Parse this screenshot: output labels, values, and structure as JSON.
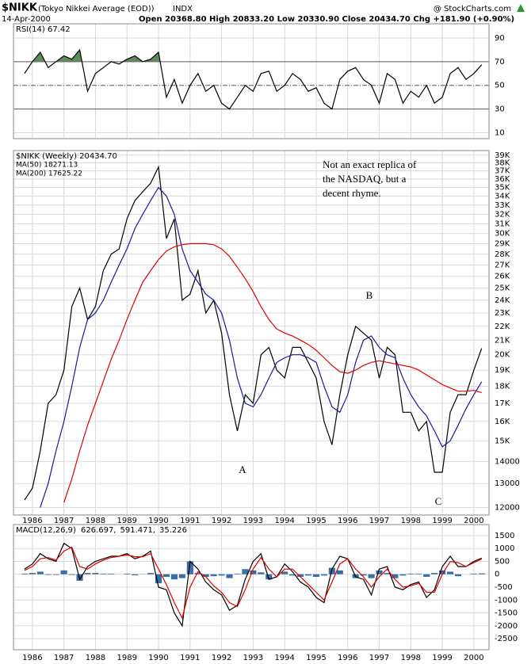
{
  "header": {
    "symbol": "$NIKK",
    "name": "(Tokyo Nikkei Average (EOD))",
    "exchange": "INDX",
    "source": "@ StockCharts.com",
    "date": "14-Apr-2000",
    "quote": "Open 20368.80  High 20833.20  Low 20330.90  Close 20434.70  Chg +181.90 (+0.90%)"
  },
  "chart_data": [
    {
      "type": "line",
      "title": "RSI(14) 67.42",
      "x": [
        1985.75,
        1986,
        1986.25,
        1986.5,
        1986.75,
        1987,
        1987.25,
        1987.5,
        1987.75,
        1988,
        1988.25,
        1988.5,
        1988.75,
        1989,
        1989.25,
        1989.5,
        1989.75,
        1990,
        1990.25,
        1990.5,
        1990.75,
        1991,
        1991.25,
        1991.5,
        1991.75,
        1992,
        1992.25,
        1992.5,
        1992.75,
        1993,
        1993.25,
        1993.5,
        1993.75,
        1994,
        1994.25,
        1994.5,
        1994.75,
        1995,
        1995.25,
        1995.5,
        1995.75,
        1996,
        1996.25,
        1996.5,
        1996.75,
        1997,
        1997.25,
        1997.5,
        1997.75,
        1998,
        1998.25,
        1998.5,
        1998.75,
        1999,
        1999.25,
        1999.5,
        1999.75,
        2000,
        2000.25
      ],
      "series": [
        {
          "name": "RSI(14)",
          "color": "#000000",
          "values": [
            60,
            70,
            78,
            65,
            70,
            75,
            72,
            80,
            45,
            60,
            65,
            70,
            68,
            72,
            75,
            70,
            72,
            78,
            40,
            55,
            35,
            50,
            60,
            45,
            50,
            35,
            30,
            40,
            50,
            45,
            60,
            62,
            45,
            50,
            60,
            55,
            45,
            48,
            35,
            30,
            55,
            62,
            65,
            55,
            50,
            35,
            60,
            55,
            35,
            45,
            40,
            50,
            35,
            40,
            60,
            65,
            55,
            60,
            67.42
          ]
        }
      ],
      "xlim": [
        1985.4,
        2000.48
      ],
      "ylim": [
        5,
        102
      ],
      "yticks": [
        10,
        30,
        50,
        70,
        90
      ],
      "overbought": 70,
      "overbought_color": "#5f8a5f",
      "grid": true
    },
    {
      "type": "line",
      "title": "$NIKK (Weekly) 20434.70",
      "log_scale": true,
      "x": [
        1985.75,
        1986,
        1986.25,
        1986.5,
        1986.75,
        1987,
        1987.25,
        1987.5,
        1987.75,
        1988,
        1988.25,
        1988.5,
        1988.75,
        1989,
        1989.25,
        1989.5,
        1989.75,
        1990,
        1990.25,
        1990.5,
        1990.75,
        1991,
        1991.25,
        1991.5,
        1991.75,
        1992,
        1992.25,
        1992.5,
        1992.75,
        1993,
        1993.25,
        1993.5,
        1993.75,
        1994,
        1994.25,
        1994.5,
        1994.75,
        1995,
        1995.25,
        1995.5,
        1995.75,
        1996,
        1996.25,
        1996.5,
        1996.75,
        1997,
        1997.25,
        1997.5,
        1997.75,
        1998,
        1998.25,
        1998.5,
        1998.75,
        1999,
        1999.25,
        1999.5,
        1999.75,
        2000,
        2000.25
      ],
      "series": [
        {
          "name": "$NIKK (Weekly) 20434.70",
          "color": "#000000",
          "values": [
            12300,
            12800,
            14500,
            17000,
            17500,
            19000,
            23500,
            25000,
            22500,
            23500,
            26500,
            28000,
            28500,
            31500,
            33500,
            34500,
            35500,
            37500,
            29500,
            31500,
            24000,
            24500,
            26500,
            23000,
            24000,
            21500,
            17500,
            15500,
            17500,
            17000,
            20000,
            20500,
            19000,
            18500,
            20500,
            20500,
            19500,
            18500,
            16000,
            14800,
            17500,
            20000,
            22000,
            21500,
            21000,
            18500,
            20500,
            20000,
            16500,
            16500,
            15500,
            16000,
            13500,
            13500,
            16500,
            17500,
            17500,
            19000,
            20434.7
          ]
        },
        {
          "name": "MA(50) 18271.13",
          "color": "#1a1a9c",
          "values": [
            null,
            null,
            12000,
            13000,
            14500,
            16000,
            18000,
            20500,
            22500,
            23000,
            24000,
            25500,
            27000,
            28500,
            30500,
            32000,
            33500,
            35000,
            34000,
            32000,
            28500,
            26500,
            25500,
            24500,
            24000,
            23000,
            21000,
            18500,
            17000,
            16800,
            17500,
            18500,
            19500,
            19800,
            20000,
            20000,
            19800,
            19500,
            18000,
            16800,
            16500,
            17500,
            19500,
            21000,
            21300,
            20500,
            20000,
            19800,
            18500,
            17500,
            16800,
            16300,
            15500,
            14700,
            15000,
            15800,
            16700,
            17500,
            18271.13
          ]
        },
        {
          "name": "MA(200) 17625.22",
          "color": "#e00000",
          "values": [
            null,
            null,
            null,
            null,
            null,
            12200,
            13200,
            14500,
            15800,
            17000,
            18300,
            19700,
            21000,
            22500,
            24000,
            25500,
            26500,
            27500,
            28300,
            28700,
            28900,
            29000,
            29000,
            29000,
            28900,
            28500,
            27800,
            26800,
            25800,
            24700,
            23500,
            22500,
            21800,
            21500,
            21300,
            21000,
            20700,
            20300,
            19800,
            19300,
            18900,
            18800,
            19000,
            19300,
            19500,
            19600,
            19500,
            19400,
            19300,
            19200,
            19000,
            18700,
            18400,
            18100,
            17900,
            17700,
            17700,
            17750,
            17625.22
          ]
        }
      ],
      "xlim": [
        1985.4,
        2000.48
      ],
      "ylim": [
        11700,
        39600
      ],
      "xticks": [
        1986,
        1987,
        1988,
        1989,
        1990,
        1991,
        1992,
        1993,
        1994,
        1995,
        1996,
        1997,
        1998,
        1999,
        2000
      ],
      "yticks": [
        12000,
        13000,
        14000,
        {
          "value": 15000,
          "label": "15K"
        },
        {
          "value": 16000,
          "label": "16K"
        },
        {
          "value": 17000,
          "label": "17K"
        },
        {
          "value": 18000,
          "label": "18K"
        },
        {
          "value": 19000,
          "label": "19K"
        },
        {
          "value": 20000,
          "label": "20K"
        },
        {
          "value": 21000,
          "label": "21K"
        },
        {
          "value": 22000,
          "label": "22K"
        },
        {
          "value": 23000,
          "label": "23K"
        },
        {
          "value": 24000,
          "label": "24K"
        },
        {
          "value": 25000,
          "label": "25K"
        },
        {
          "value": 26000,
          "label": "26K"
        },
        {
          "value": 27000,
          "label": "27K"
        },
        {
          "value": 28000,
          "label": "28K"
        },
        {
          "value": 29000,
          "label": "29K"
        },
        {
          "value": 30000,
          "label": "30K"
        },
        {
          "value": 31000,
          "label": "31K"
        },
        {
          "value": 32000,
          "label": "32K"
        },
        {
          "value": 33000,
          "label": "33K"
        },
        {
          "value": 34000,
          "label": "34K"
        },
        {
          "value": 35000,
          "label": "35K"
        },
        {
          "value": 36000,
          "label": "36K"
        },
        {
          "value": 37000,
          "label": "37K"
        },
        {
          "value": 38000,
          "label": "38K"
        },
        {
          "value": 39000,
          "label": "39K"
        }
      ],
      "grid": true,
      "annotations": [
        "Not an exact replica of",
        "the NASDAQ, but a",
        "decent rhyme.",
        "A",
        "B",
        "C"
      ]
    },
    {
      "type": "line",
      "title": "MACD(12,26,9)",
      "x": [
        1985.75,
        1986,
        1986.25,
        1986.5,
        1986.75,
        1987,
        1987.25,
        1987.5,
        1987.75,
        1988,
        1988.25,
        1988.5,
        1988.75,
        1989,
        1989.25,
        1989.5,
        1989.75,
        1990,
        1990.25,
        1990.5,
        1990.75,
        1991,
        1991.25,
        1991.5,
        1991.75,
        1992,
        1992.25,
        1992.5,
        1992.75,
        1993,
        1993.25,
        1993.5,
        1993.75,
        1994,
        1994.25,
        1994.5,
        1994.75,
        1995,
        1995.25,
        1995.5,
        1995.75,
        1996,
        1996.25,
        1996.5,
        1996.75,
        1997,
        1997.25,
        1997.5,
        1997.75,
        1998,
        1998.25,
        1998.5,
        1998.75,
        1999,
        1999.25,
        1999.5,
        1999.75,
        2000,
        2000.25
      ],
      "series": [
        {
          "name": "35.226",
          "type": "bar",
          "color": "#3a6ea5",
          "values": [
            25,
            50,
            100,
            -25,
            -25,
            150,
            -25,
            -250,
            50,
            50,
            25,
            25,
            0,
            25,
            -40,
            10,
            50,
            -350,
            -100,
            -200,
            -150,
            500,
            50,
            -100,
            -75,
            -50,
            -150,
            25,
            200,
            150,
            75,
            -200,
            0,
            100,
            -50,
            -100,
            -50,
            -100,
            -50,
            250,
            150,
            0,
            -150,
            -50,
            -150,
            150,
            50,
            -150,
            -50,
            25,
            25,
            -100,
            50,
            150,
            100,
            -75,
            0,
            25,
            35.226
          ]
        },
        {
          "name": "626.697,",
          "color": "#000000",
          "values": [
            200,
            400,
            800,
            600,
            500,
            1200,
            1000,
            -200,
            300,
            500,
            600,
            700,
            700,
            800,
            600,
            700,
            900,
            -500,
            -600,
            -1500,
            -2000,
            500,
            200,
            -300,
            -600,
            -800,
            -1400,
            -1200,
            -200,
            500,
            800,
            -200,
            -100,
            400,
            100,
            -300,
            -500,
            -900,
            -1100,
            200,
            700,
            600,
            -100,
            -200,
            -800,
            200,
            300,
            -500,
            -600,
            -400,
            -300,
            -900,
            -600,
            300,
            700,
            300,
            300,
            500,
            626.697
          ]
        },
        {
          "name": "591.471,",
          "color": "#e00000",
          "values": [
            150,
            300,
            600,
            650,
            550,
            900,
            1050,
            300,
            200,
            400,
            550,
            650,
            700,
            750,
            680,
            680,
            800,
            200,
            -400,
            -1100,
            -1700,
            -500,
            100,
            -100,
            -450,
            -700,
            -1100,
            -1250,
            -600,
            200,
            650,
            200,
            -100,
            200,
            200,
            -100,
            -400,
            -700,
            -1000,
            -300,
            400,
            600,
            200,
            -100,
            -500,
            -100,
            200,
            -200,
            -500,
            -450,
            -350,
            -700,
            -700,
            0,
            500,
            450,
            300,
            450,
            591.471
          ]
        }
      ],
      "legend_order": [
        1,
        2,
        0
      ],
      "xlim": [
        1985.4,
        2000.48
      ],
      "ylim": [
        -2930,
        1930
      ],
      "xticks": [
        1986,
        1987,
        1988,
        1989,
        1990,
        1991,
        1992,
        1993,
        1994,
        1995,
        1996,
        1997,
        1998,
        1999,
        2000
      ],
      "yticks": [
        1500,
        1000,
        500,
        0,
        -500,
        -1000,
        -1500,
        -2000,
        -2500
      ],
      "grid": true
    }
  ]
}
